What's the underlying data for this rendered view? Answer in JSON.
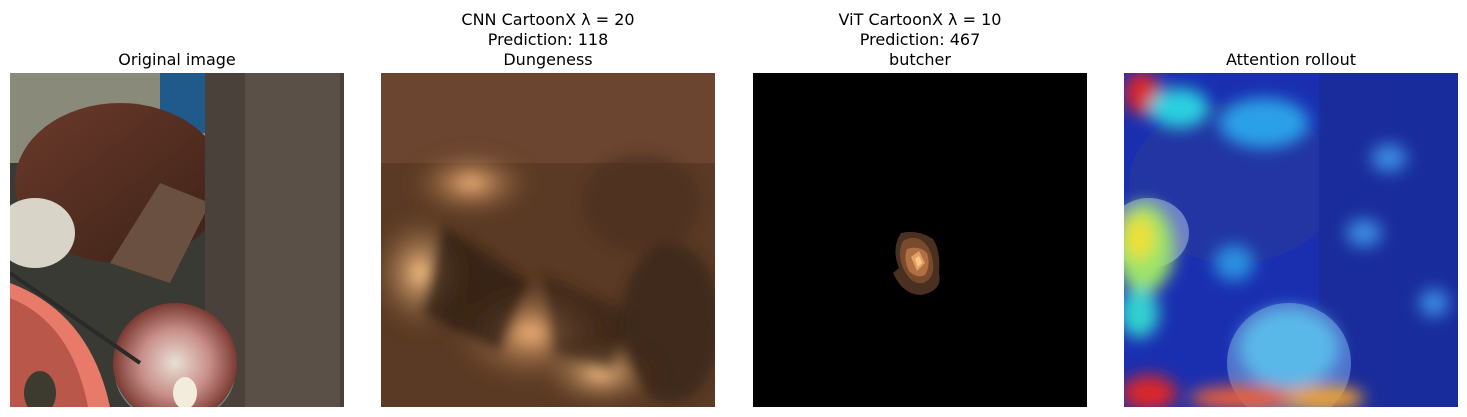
{
  "panels": [
    {
      "title_lines": [
        "Original image"
      ]
    },
    {
      "title_lines": [
        "CNN CartoonX λ = 20",
        "Prediction: 118",
        "Dungeness"
      ]
    },
    {
      "title_lines": [
        "ViT CartoonX λ = 10",
        "Prediction: 467",
        "butcher"
      ]
    },
    {
      "title_lines": [
        "Attention rollout"
      ]
    }
  ],
  "colors": {
    "background": "#ffffff",
    "copper_bright": "#ffc78a",
    "copper_dark": "#2a1a10",
    "jet_blue": "#1f3fd8",
    "jet_red": "#d9262a"
  }
}
